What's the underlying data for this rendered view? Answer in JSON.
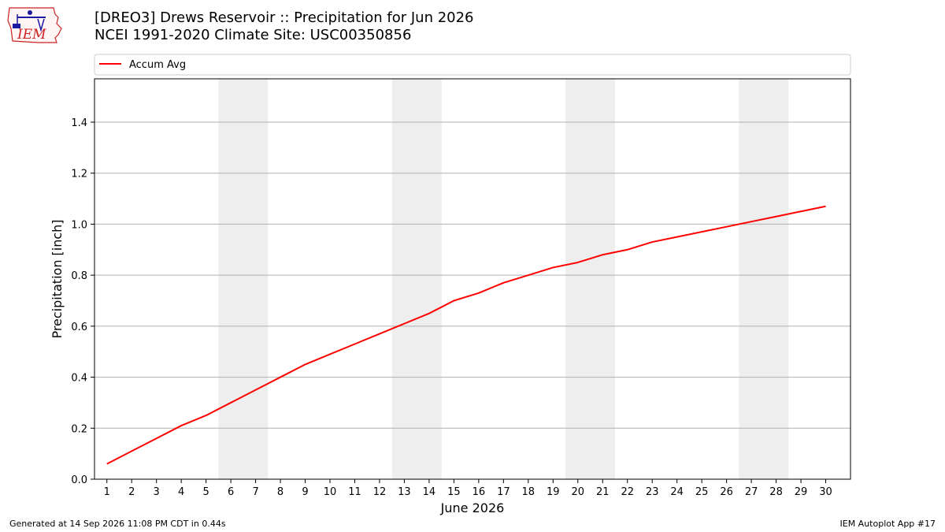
{
  "header": {
    "title_line1": "[DREO3] Drews Reservoir :: Precipitation for Jun 2026",
    "title_line2": "NCEI 1991-2020 Climate Site: USC00350856",
    "logo_text": "IEM"
  },
  "footer": {
    "generated": "Generated at 14 Sep 2026 11:08 PM CDT in 0.44s",
    "app": "IEM Autoplot App #17"
  },
  "chart_data": {
    "type": "line",
    "xlabel": "June 2026",
    "ylabel": "Precipitation [inch]",
    "x": [
      1,
      2,
      3,
      4,
      5,
      6,
      7,
      8,
      9,
      10,
      11,
      12,
      13,
      14,
      15,
      16,
      17,
      18,
      19,
      20,
      21,
      22,
      23,
      24,
      25,
      26,
      27,
      28,
      29,
      30
    ],
    "xlim": [
      0.5,
      31
    ],
    "ylim": [
      0,
      1.57
    ],
    "yticks": [
      0.0,
      0.2,
      0.4,
      0.6,
      0.8,
      1.0,
      1.2,
      1.4
    ],
    "ytick_labels": [
      "0.0",
      "0.2",
      "0.4",
      "0.6",
      "0.8",
      "1.0",
      "1.2",
      "1.4"
    ],
    "grid": "horizontal",
    "legend_position": "top",
    "weekend_shading": [
      [
        5.5,
        7.5
      ],
      [
        12.5,
        14.5
      ],
      [
        19.5,
        21.5
      ],
      [
        26.5,
        28.5
      ]
    ],
    "weekend_color": "#eeeeee",
    "series": [
      {
        "name": "Accum Avg",
        "color": "#ff0000",
        "values": [
          0.06,
          0.11,
          0.16,
          0.21,
          0.25,
          0.3,
          0.35,
          0.4,
          0.45,
          0.49,
          0.53,
          0.57,
          0.61,
          0.65,
          0.7,
          0.73,
          0.77,
          0.8,
          0.83,
          0.85,
          0.88,
          0.9,
          0.93,
          0.95,
          0.97,
          0.99,
          1.01,
          1.03,
          1.05,
          1.07
        ]
      }
    ]
  }
}
